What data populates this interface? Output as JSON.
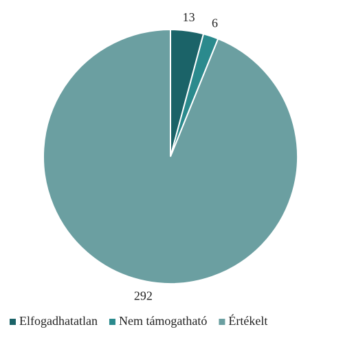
{
  "chart_data": {
    "type": "pie",
    "categories": [
      "Elfogadhatatlan",
      "Nem támogatható",
      "Értékelt"
    ],
    "values": [
      13,
      6,
      292
    ],
    "colors": [
      "#1b6368",
      "#2b8a8d",
      "#6b9fa1"
    ],
    "legend": "bottom"
  }
}
